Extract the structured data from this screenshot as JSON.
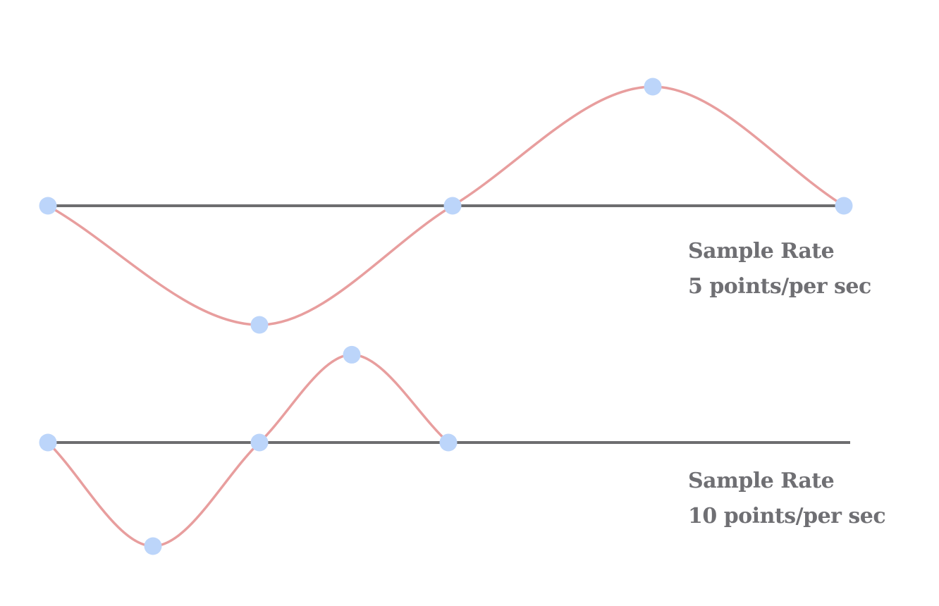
{
  "colors": {
    "baseline": "#6d6d6f",
    "wave": "#e89e9e",
    "point": "#bcd5fa",
    "text": "#6f6f73"
  },
  "panels": [
    {
      "title": "Sample Rate",
      "rate_text": "5 points/per sec",
      "samples": [
        0,
        -1,
        0,
        1,
        0
      ]
    },
    {
      "title": "Sample Rate",
      "rate_text": "10 points/per sec",
      "samples": [
        0,
        -1,
        0,
        1,
        0
      ]
    }
  ]
}
